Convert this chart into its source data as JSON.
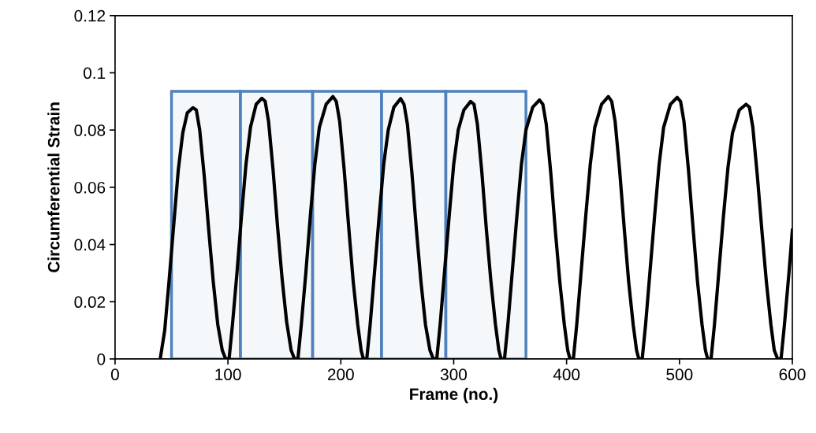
{
  "chart_data": {
    "type": "line",
    "xlabel": "Frame (no.)",
    "ylabel": "Circumferential Strain",
    "xlim": [
      0,
      600
    ],
    "ylim": [
      0,
      0.12
    ],
    "xticks": [
      0,
      100,
      200,
      300,
      400,
      500,
      600
    ],
    "yticks": [
      0,
      0.02,
      0.04,
      0.06,
      0.08,
      0.1,
      0.12
    ],
    "grid": false,
    "marker": "none",
    "line_style": "solid",
    "series": [
      {
        "color": "#000000",
        "x": [
          40,
          44,
          48,
          52,
          56,
          60,
          64,
          69,
          72,
          75,
          79,
          83,
          87,
          91,
          95,
          98,
          101,
          104,
          108,
          112,
          116,
          120,
          125,
          130,
          133,
          136,
          140,
          144,
          148,
          152,
          156,
          159,
          162,
          165,
          169,
          173,
          177,
          181,
          187,
          193,
          196,
          199,
          203,
          207,
          211,
          215,
          218,
          220,
          223,
          226,
          230,
          234,
          238,
          242,
          247,
          253,
          256,
          259,
          263,
          267,
          271,
          275,
          279,
          282,
          285,
          288,
          292,
          296,
          300,
          304,
          309,
          315,
          318,
          321,
          325,
          329,
          333,
          337,
          340,
          342,
          345,
          348,
          352,
          356,
          360,
          364,
          370,
          376,
          379,
          382,
          386,
          390,
          394,
          398,
          401,
          403,
          406,
          409,
          413,
          417,
          421,
          425,
          431,
          437,
          440,
          443,
          447,
          451,
          455,
          459,
          462,
          464,
          467,
          470,
          474,
          478,
          482,
          486,
          492,
          498,
          501,
          504,
          508,
          512,
          516,
          520,
          523,
          525,
          528,
          531,
          535,
          539,
          543,
          547,
          553,
          559,
          562,
          565,
          569,
          573,
          577,
          581,
          584,
          587,
          590,
          593,
          597,
          600
        ],
        "values": [
          0,
          0.01,
          0.028,
          0.047,
          0.066,
          0.079,
          0.086,
          0.0878,
          0.087,
          0.08,
          0.064,
          0.045,
          0.027,
          0.012,
          0.003,
          0,
          0,
          0.012,
          0.03,
          0.05,
          0.068,
          0.081,
          0.089,
          0.0911,
          0.09,
          0.083,
          0.066,
          0.046,
          0.028,
          0.013,
          0.003,
          0,
          0,
          0.012,
          0.03,
          0.05,
          0.068,
          0.081,
          0.089,
          0.0917,
          0.09,
          0.083,
          0.066,
          0.046,
          0.027,
          0.012,
          0.003,
          0,
          0,
          0.012,
          0.031,
          0.05,
          0.068,
          0.08,
          0.088,
          0.091,
          0.089,
          0.082,
          0.065,
          0.045,
          0.027,
          0.012,
          0.003,
          0,
          0,
          0.012,
          0.031,
          0.05,
          0.068,
          0.08,
          0.087,
          0.09,
          0.089,
          0.082,
          0.065,
          0.045,
          0.027,
          0.012,
          0.003,
          0,
          0,
          0.012,
          0.031,
          0.05,
          0.068,
          0.08,
          0.088,
          0.0905,
          0.089,
          0.082,
          0.065,
          0.045,
          0.027,
          0.012,
          0.003,
          0,
          0,
          0.012,
          0.031,
          0.05,
          0.068,
          0.081,
          0.089,
          0.0917,
          0.09,
          0.083,
          0.066,
          0.046,
          0.027,
          0.012,
          0.003,
          0,
          0,
          0.012,
          0.031,
          0.05,
          0.068,
          0.081,
          0.089,
          0.0914,
          0.09,
          0.083,
          0.066,
          0.046,
          0.027,
          0.012,
          0.003,
          0,
          0,
          0.012,
          0.031,
          0.05,
          0.067,
          0.079,
          0.087,
          0.089,
          0.088,
          0.081,
          0.064,
          0.045,
          0.027,
          0.012,
          0.003,
          0,
          0,
          0.012,
          0.03,
          0.045
        ]
      }
    ],
    "bands": [
      {
        "axis": "x",
        "from": 50,
        "to": 111,
        "color": "#4f81bd"
      },
      {
        "axis": "x",
        "from": 111,
        "to": 175,
        "color": "#4f81bd"
      },
      {
        "axis": "x",
        "from": 175,
        "to": 236,
        "color": "#4f81bd"
      },
      {
        "axis": "x",
        "from": 236,
        "to": 293,
        "color": "#4f81bd"
      },
      {
        "axis": "x",
        "from": 293,
        "to": 364,
        "color": "#4f81bd"
      }
    ]
  }
}
